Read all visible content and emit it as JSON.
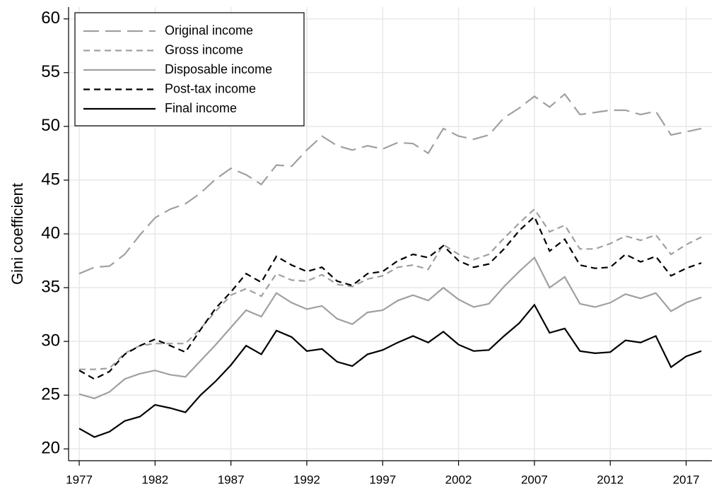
{
  "chart_data": {
    "type": "line",
    "y_label": "Gini coefficient",
    "x": [
      1977,
      1978,
      1979,
      1980,
      1981,
      1982,
      1983,
      1984,
      1985,
      1986,
      1987,
      1988,
      1989,
      1990,
      1991,
      1992,
      1993,
      1994,
      1995,
      1996,
      1997,
      1998,
      1999,
      2000,
      2001,
      2002,
      2003,
      2004,
      2005,
      2006,
      2007,
      2008,
      2009,
      2010,
      2011,
      2012,
      2013,
      2014,
      2015,
      2016,
      2017,
      2018
    ],
    "series": [
      {
        "name": "Original income",
        "color": "#a0a0a0",
        "dash": "long",
        "values": [
          36.3,
          36.9,
          37.0,
          38.1,
          39.9,
          41.5,
          42.3,
          42.8,
          43.8,
          45.1,
          46.1,
          45.5,
          44.6,
          46.4,
          46.3,
          47.8,
          49.1,
          48.2,
          47.8,
          48.2,
          47.9,
          48.5,
          48.4,
          47.5,
          49.8,
          49.1,
          48.8,
          49.2,
          50.8,
          51.7,
          52.8,
          51.8,
          53.0,
          51.1,
          51.3,
          51.5,
          51.5,
          51.1,
          51.4,
          49.2,
          49.5,
          49.8
        ]
      },
      {
        "name": "Gross income",
        "color": "#a0a0a0",
        "dash": "short",
        "values": [
          27.4,
          27.4,
          27.5,
          28.9,
          29.6,
          29.8,
          29.8,
          29.8,
          31.2,
          32.8,
          34.3,
          34.9,
          34.2,
          36.3,
          35.7,
          35.6,
          36.2,
          35.3,
          35.1,
          35.8,
          36.1,
          36.9,
          37.1,
          36.7,
          39.0,
          38.1,
          37.6,
          38.1,
          39.6,
          41.0,
          42.3,
          40.2,
          40.8,
          38.6,
          38.6,
          39.1,
          39.8,
          39.4,
          39.9,
          38.1,
          39.0,
          39.7
        ]
      },
      {
        "name": "Disposable income",
        "color": "#a0a0a0",
        "dash": "solid",
        "values": [
          25.1,
          24.7,
          25.3,
          26.5,
          27.0,
          27.3,
          26.9,
          26.7,
          28.2,
          29.7,
          31.3,
          32.9,
          32.3,
          34.5,
          33.6,
          33.0,
          33.3,
          32.1,
          31.6,
          32.7,
          32.9,
          33.8,
          34.3,
          33.8,
          35.0,
          33.9,
          33.2,
          33.5,
          35.1,
          36.5,
          37.8,
          35.0,
          36.0,
          33.5,
          33.2,
          33.6,
          34.4,
          34.0,
          34.5,
          32.8,
          33.6,
          34.1
        ]
      },
      {
        "name": "Post-tax income",
        "color": "#000000",
        "dash": "short",
        "values": [
          27.3,
          26.5,
          27.2,
          28.8,
          29.6,
          30.2,
          29.6,
          29.0,
          31.1,
          33.1,
          34.6,
          36.3,
          35.5,
          37.9,
          37.1,
          36.5,
          36.9,
          35.6,
          35.2,
          36.3,
          36.5,
          37.5,
          38.1,
          37.8,
          38.9,
          37.5,
          36.9,
          37.2,
          38.6,
          40.3,
          41.6,
          38.4,
          39.5,
          37.1,
          36.8,
          36.9,
          38.1,
          37.4,
          37.9,
          36.1,
          36.8,
          37.3
        ]
      },
      {
        "name": "Final income",
        "color": "#000000",
        "dash": "solid",
        "values": [
          21.9,
          21.1,
          21.6,
          22.6,
          23.0,
          24.1,
          23.8,
          23.4,
          25.0,
          26.3,
          27.8,
          29.6,
          28.8,
          31.0,
          30.4,
          29.1,
          29.3,
          28.1,
          27.7,
          28.8,
          29.2,
          29.9,
          30.5,
          29.9,
          30.9,
          29.7,
          29.1,
          29.2,
          30.5,
          31.7,
          33.4,
          30.8,
          31.2,
          29.1,
          28.9,
          29.0,
          30.1,
          29.9,
          30.5,
          27.6,
          28.6,
          29.1
        ]
      }
    ],
    "xlim": [
      1976.3,
      2018.7
    ],
    "xticks": [
      1977,
      1982,
      1987,
      1992,
      1997,
      2002,
      2007,
      2012,
      2017
    ],
    "ylim": [
      18.9,
      61.1
    ],
    "yticks": [
      20,
      25,
      30,
      35,
      40,
      45,
      50,
      55,
      60
    ],
    "grid": true,
    "legend": "top-left"
  }
}
